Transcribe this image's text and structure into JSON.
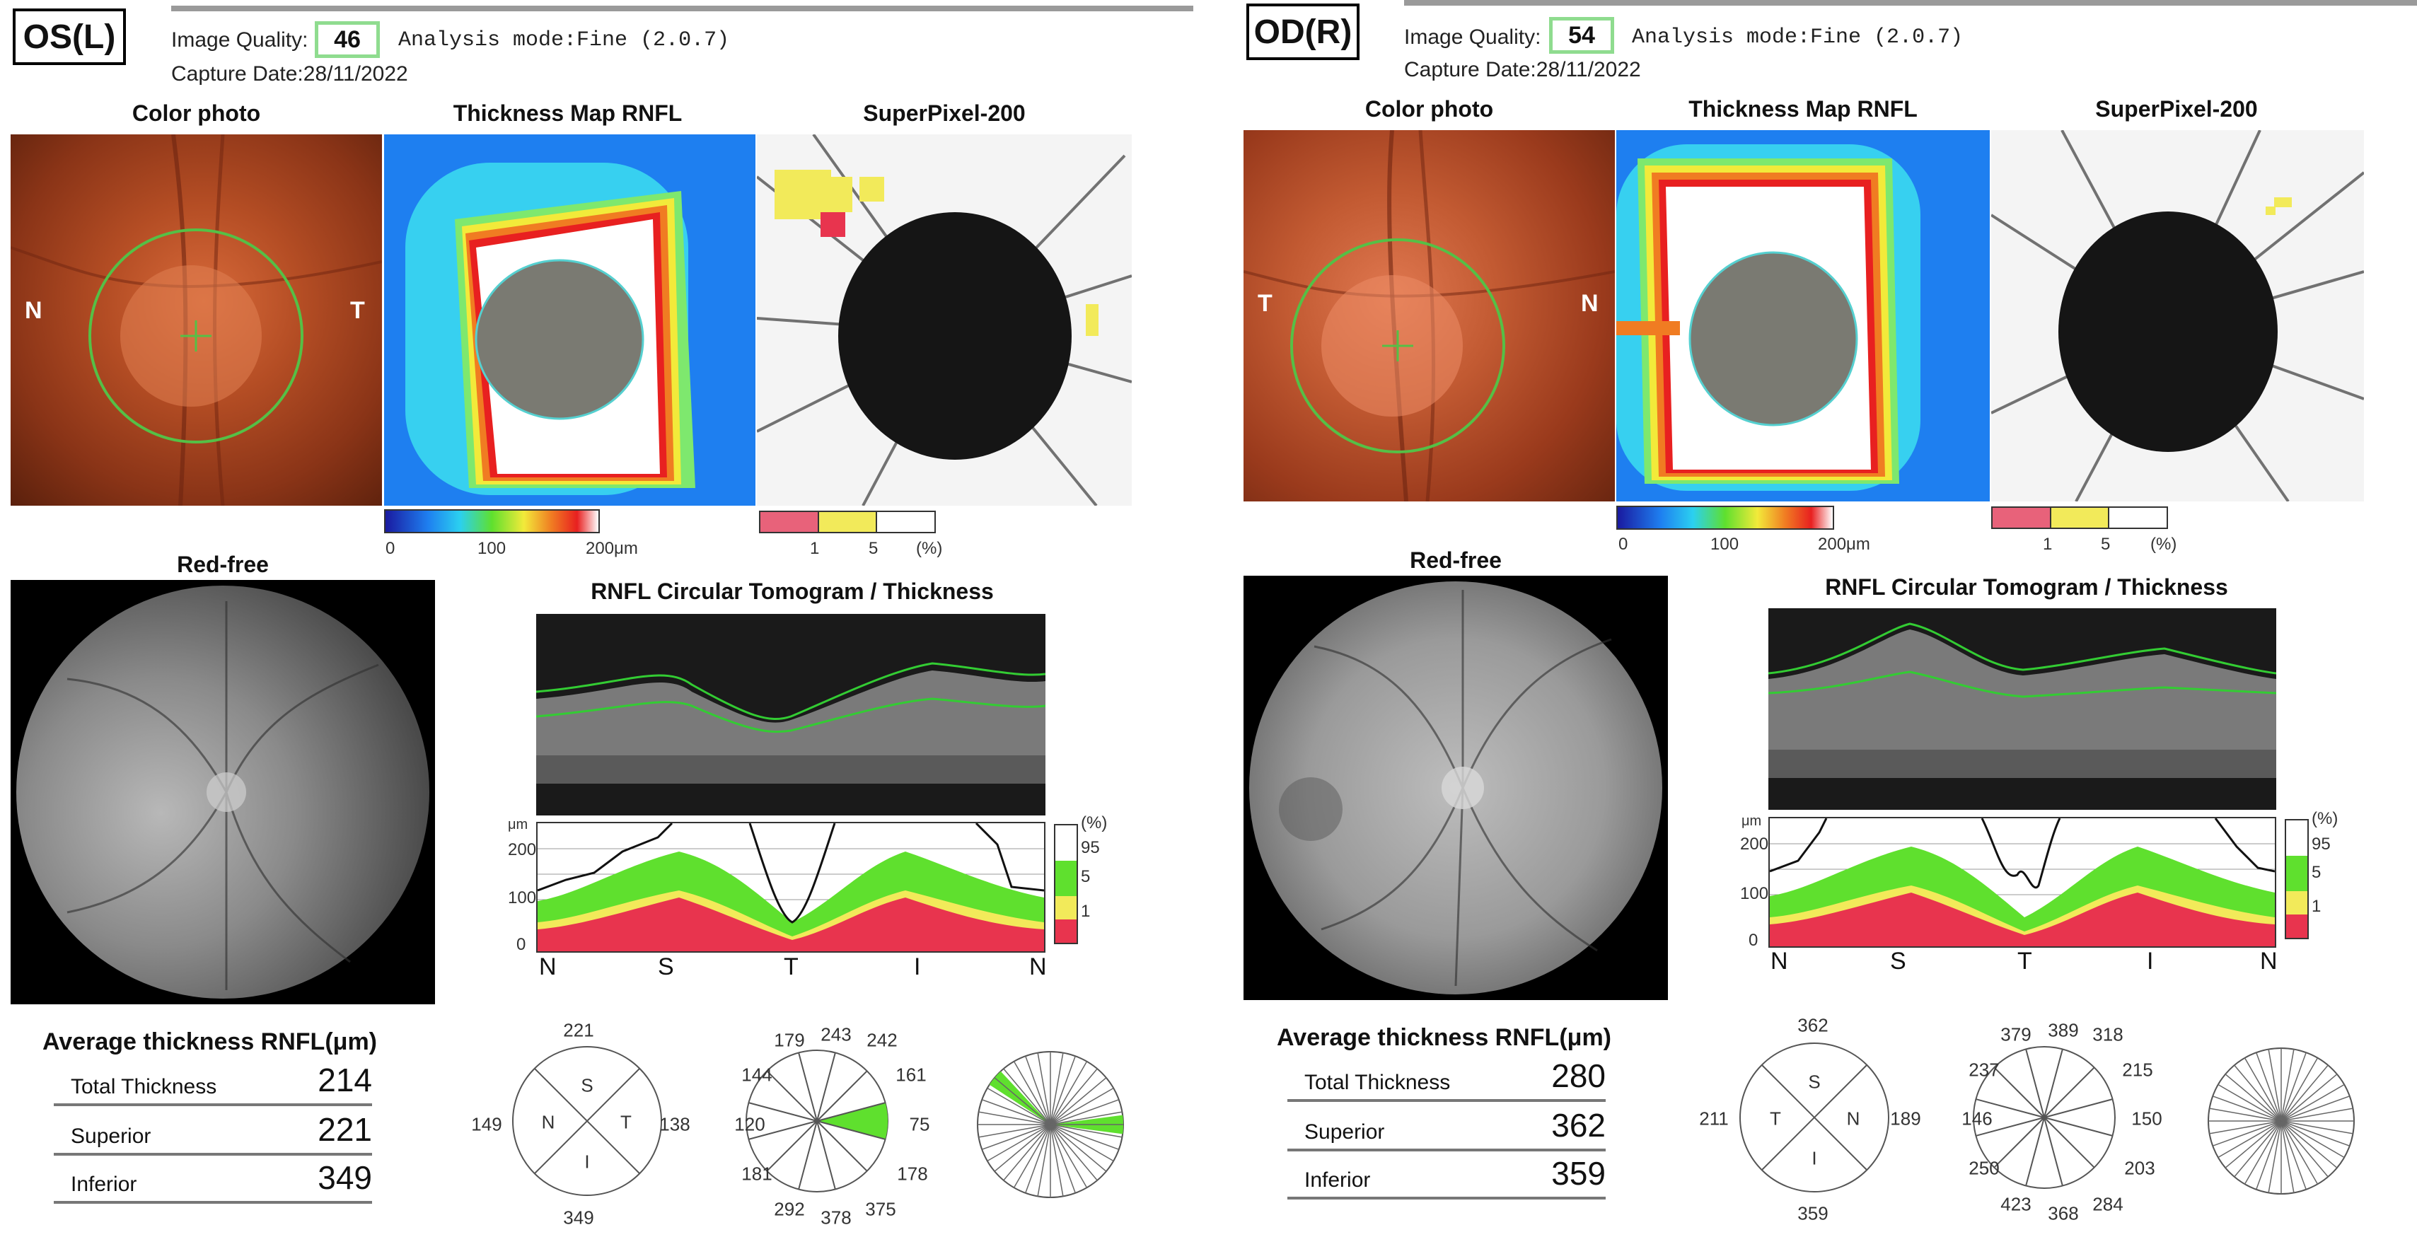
{
  "left": {
    "eye": "OS(L)",
    "image_quality_label": "Image Quality:",
    "image_quality": "46",
    "analysis_mode": "Analysis mode:Fine (2.0.7)",
    "capture_date": "Capture Date:28/11/2022",
    "titles": {
      "color": "Color photo",
      "thickness": "Thickness Map RNFL",
      "superpixel": "SuperPixel-200",
      "redfree": "Red-free",
      "tomogram": "RNFL Circular Tomogram / Thickness",
      "avg": "Average thickness RNFL(μm)"
    },
    "color_side_left": "N",
    "color_side_right": "T",
    "colorbar_ticks": [
      "0",
      "100",
      "200μm"
    ],
    "sp_ticks": [
      "1",
      "5",
      "(%)"
    ],
    "graph_unit": "μm",
    "graph_y_ticks": [
      "200",
      "100",
      "0"
    ],
    "graph_x_labels": [
      "N",
      "S",
      "T",
      "I",
      "N"
    ],
    "legend_labels": [
      "(%)",
      "95",
      "5",
      "1"
    ],
    "table": [
      {
        "label": "Total Thickness",
        "value": "214"
      },
      {
        "label": "Superior",
        "value": "221"
      },
      {
        "label": "Inferior",
        "value": "349"
      }
    ],
    "quadrant": {
      "top": "221",
      "left": "149",
      "right": "138",
      "bottom": "349",
      "in_top": "S",
      "in_left": "N",
      "in_right": "T",
      "in_bottom": "I"
    },
    "clock": [
      "243",
      "242",
      "161",
      "75",
      "178",
      "375",
      "378",
      "292",
      "181",
      "120",
      "144",
      "179"
    ]
  },
  "right": {
    "eye": "OD(R)",
    "image_quality_label": "Image Quality:",
    "image_quality": "54",
    "analysis_mode": "Analysis mode:Fine (2.0.7)",
    "capture_date": "Capture Date:28/11/2022",
    "titles": {
      "color": "Color photo",
      "thickness": "Thickness Map RNFL",
      "superpixel": "SuperPixel-200",
      "redfree": "Red-free",
      "tomogram": "RNFL Circular Tomogram / Thickness",
      "avg": "Average thickness RNFL(μm)"
    },
    "color_side_left": "T",
    "color_side_right": "N",
    "colorbar_ticks": [
      "0",
      "100",
      "200μm"
    ],
    "sp_ticks": [
      "1",
      "5",
      "(%)"
    ],
    "graph_unit": "μm",
    "graph_y_ticks": [
      "200",
      "100",
      "0"
    ],
    "graph_x_labels": [
      "N",
      "S",
      "T",
      "I",
      "N"
    ],
    "legend_labels": [
      "(%)",
      "95",
      "5",
      "1"
    ],
    "table": [
      {
        "label": "Total Thickness",
        "value": "280"
      },
      {
        "label": "Superior",
        "value": "362"
      },
      {
        "label": "Inferior",
        "value": "359"
      }
    ],
    "quadrant": {
      "top": "362",
      "left": "211",
      "right": "189",
      "bottom": "359",
      "in_top": "S",
      "in_left": "T",
      "in_right": "N",
      "in_bottom": "I"
    },
    "clock": [
      "389",
      "318",
      "215",
      "150",
      "203",
      "284",
      "368",
      "423",
      "250",
      "146",
      "237",
      "379"
    ]
  },
  "colors": {
    "quality_box": "#8fdc8f",
    "sector_green": "#33cc33",
    "band_red": "#e8344e",
    "band_yellow": "#f2ea5a",
    "band_green": "#5fe02e",
    "fundus": "#a5431f"
  }
}
